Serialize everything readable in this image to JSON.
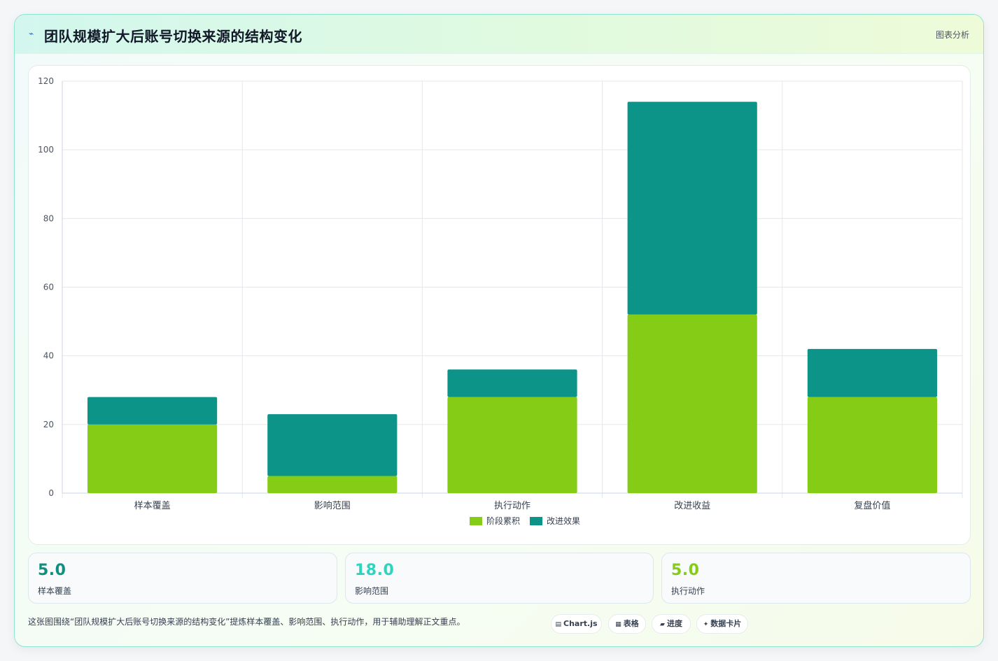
{
  "header": {
    "icon": "chart-line-icon",
    "title": "团队规模扩大后账号切换来源的结构变化",
    "tag": "图表分析"
  },
  "chart_data": {
    "type": "bar",
    "stacked": true,
    "categories": [
      "样本覆盖",
      "影响范围",
      "执行动作",
      "改进收益",
      "复盘价值"
    ],
    "series": [
      {
        "name": "阶段累积",
        "values": [
          20,
          5,
          28,
          52,
          28
        ],
        "color": "#84cc16"
      },
      {
        "name": "改进效果",
        "values": [
          8,
          18,
          8,
          62,
          14
        ],
        "color": "#0d9488"
      }
    ],
    "ylim": [
      0,
      120
    ],
    "yticks": [
      0,
      20,
      40,
      60,
      80,
      100,
      120
    ],
    "grid": true,
    "legend": "bottom"
  },
  "kpis": [
    {
      "value": "5.0",
      "label": "样本覆盖",
      "color": "#0f8f7e"
    },
    {
      "value": "18.0",
      "label": "影响范围",
      "color": "#2dd4bf"
    },
    {
      "value": "5.0",
      "label": "执行动作",
      "color": "#84cc16"
    }
  ],
  "footer": {
    "note": "这张图围绕“团队规模扩大后账号切换来源的结构变化”提炼样本覆盖、影响范围、执行动作，用于辅助理解正文重点。"
  },
  "badges": [
    {
      "icon": "database-icon",
      "label": "Chart.js"
    },
    {
      "icon": "table-icon",
      "label": "表格"
    },
    {
      "icon": "progress-icon",
      "label": "进度"
    },
    {
      "icon": "sparkle-icon",
      "label": "数据卡片"
    }
  ]
}
